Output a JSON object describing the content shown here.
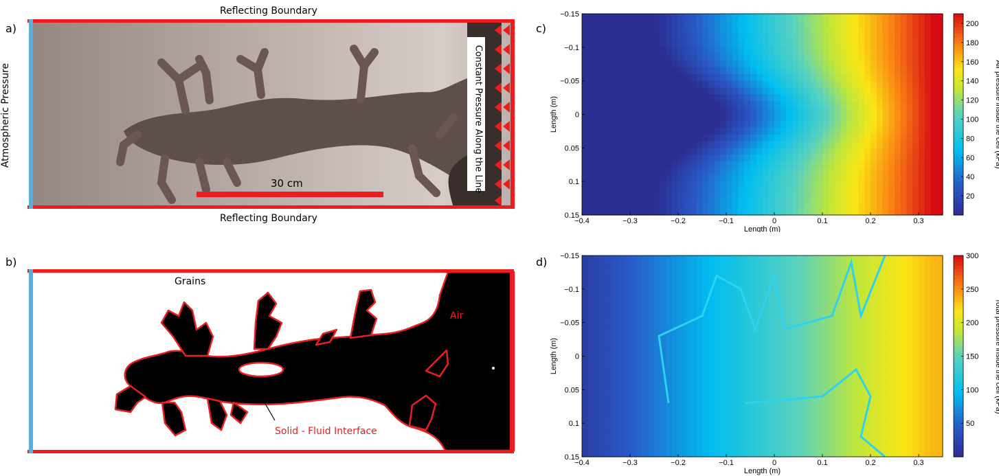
{
  "panels": {
    "a": {
      "letter": "a)",
      "top_label": "Reflecting Boundary",
      "bottom_label": "Reflecting Boundary",
      "left_label": "Atmospheric Pressure",
      "right_label": "Constant Pressure Along the Line",
      "scale_label": "30 cm"
    },
    "b": {
      "letter": "b)",
      "grains_label": "Grains",
      "air_label": "Air",
      "interface_label": "Solid - Fluid Interface"
    },
    "c": {
      "letter": "c)"
    },
    "d": {
      "letter": "d)"
    }
  },
  "colors": {
    "boundary_red": "#ee1c1c",
    "atmosphere_blue": "#5aaed9",
    "jet_low": "#2b2b8f",
    "jet_high": "#c8001a"
  },
  "chart_data": [
    {
      "panel": "c",
      "type": "heatmap",
      "xlabel": "Length (m)",
      "ylabel": "Length (m)",
      "colorbar_label": "Air pressure inside the cell (kPa)",
      "xlim": [
        -0.4,
        0.35
      ],
      "ylim": [
        -0.15,
        0.15
      ],
      "y_inverted": true,
      "x_ticks": [
        "-0.4",
        "-0.3",
        "-0.2",
        "-0.1",
        "0",
        "0.1",
        "0.2",
        "0.3"
      ],
      "y_ticks": [
        "-0.15",
        "-0.1",
        "-0.05",
        "0",
        "0.05",
        "0.1",
        "0.15"
      ],
      "colorbar_ticks": [
        "20",
        "40",
        "60",
        "80",
        "100",
        "120",
        "140",
        "160",
        "180",
        "200"
      ],
      "clim": [
        0,
        210
      ]
    },
    {
      "panel": "d",
      "type": "heatmap",
      "xlabel": "Length (m)",
      "ylabel": "Length (m)",
      "colorbar_label": "Total pressure inside the cell (kPa)",
      "xlim": [
        -0.4,
        0.35
      ],
      "ylim": [
        -0.15,
        0.15
      ],
      "y_inverted": true,
      "x_ticks": [
        "-0.4",
        "-0.3",
        "-0.2",
        "-0.1",
        "0",
        "0.1",
        "0.2",
        "0.3"
      ],
      "y_ticks": [
        "-0.15",
        "-0.1",
        "-0.05",
        "0",
        "0.05",
        "0.1",
        "0.15"
      ],
      "colorbar_ticks": [
        "50",
        "100",
        "150",
        "200",
        "250",
        "300"
      ],
      "clim": [
        0,
        300
      ]
    }
  ]
}
